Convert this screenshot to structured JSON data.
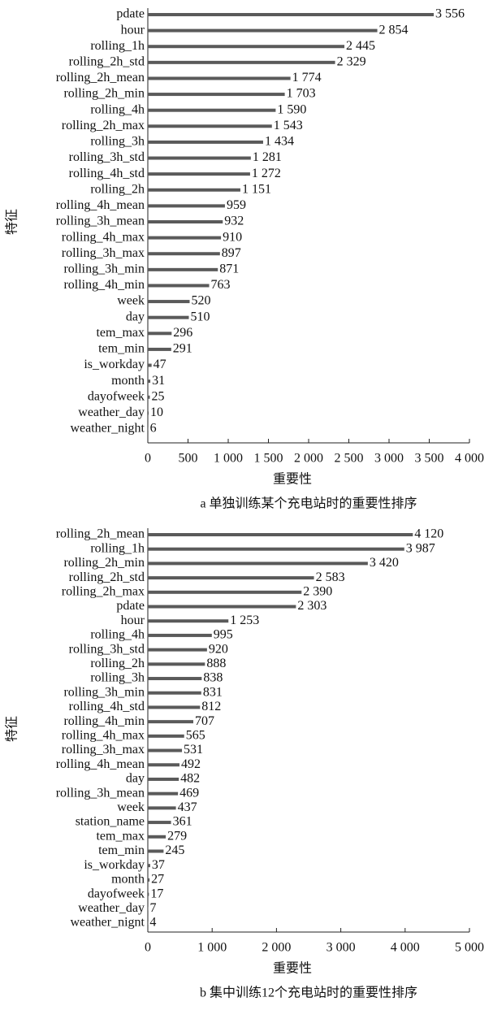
{
  "chart_data": [
    {
      "type": "barh",
      "caption": "a 单独训练某个充电站时的重要性排序",
      "xlabel": "重要性",
      "ylabel": "特征",
      "categories": [
        "pdate",
        "hour",
        "rolling_1h",
        "rolling_2h_std",
        "rolling_2h_mean",
        "rolling_2h_min",
        "rolling_4h",
        "rolling_2h_max",
        "rolling_3h",
        "rolling_3h_std",
        "rolling_4h_std",
        "rolling_2h",
        "rolling_4h_mean",
        "rolling_3h_mean",
        "rolling_4h_max",
        "rolling_3h_max",
        "rolling_3h_min",
        "rolling_4h_min",
        "week",
        "day",
        "tem_max",
        "tem_min",
        "is_workday",
        "month",
        "dayofweek",
        "weather_day",
        "weather_night"
      ],
      "values": [
        3556,
        2854,
        2445,
        2329,
        1774,
        1703,
        1590,
        1543,
        1434,
        1281,
        1272,
        1151,
        959,
        932,
        910,
        897,
        871,
        763,
        520,
        510,
        296,
        291,
        47,
        31,
        25,
        10,
        6
      ],
      "value_labels": [
        "3 556",
        "2 854",
        "2 445",
        "2 329",
        "1 774",
        "1 703",
        "1 590",
        "1 543",
        "1 434",
        "1 281",
        "1 272",
        "1 151",
        "959",
        "932",
        "910",
        "897",
        "871",
        "763",
        "520",
        "510",
        "296",
        "291",
        "47",
        "31",
        "25",
        "10",
        "6"
      ],
      "color": "#5a5a5a",
      "xlim": [
        0,
        4000
      ],
      "xticks": [
        0,
        500,
        {
          "value": 1000,
          "label": "1 000"
        },
        {
          "value": 1500,
          "label": "1 500"
        },
        {
          "value": 2000,
          "label": "2 000"
        },
        {
          "value": 2500,
          "label": "2 500"
        },
        {
          "value": 3000,
          "label": "3 000"
        },
        {
          "value": 3500,
          "label": "3 500"
        },
        {
          "value": 4000,
          "label": "4 000"
        }
      ]
    },
    {
      "type": "barh",
      "caption": "b 集中训练12个充电站时的重要性排序",
      "xlabel": "重要性",
      "ylabel": "特征",
      "categories": [
        "rolling_2h_mean",
        "rolling_1h",
        "rolling_2h_min",
        "rolling_2h_std",
        "rolling_2h_max",
        "pdate",
        "hour",
        "rolling_4h",
        "rolling_3h_std",
        "rolling_2h",
        "rolling_3h",
        "rolling_3h_min",
        "rolling_4h_std",
        "rolling_4h_min",
        "rolling_4h_max",
        "rolling_3h_max",
        "rolling_4h_mean",
        "day",
        "rolling_3h_mean",
        "week",
        "station_name",
        "tem_max",
        "tem_min",
        "is_workday",
        "month",
        "dayofweek",
        "weather_day",
        "weather_nignt"
      ],
      "values": [
        4120,
        3987,
        3420,
        2583,
        2390,
        2303,
        1253,
        995,
        920,
        888,
        838,
        831,
        812,
        707,
        565,
        531,
        492,
        482,
        469,
        437,
        361,
        279,
        245,
        37,
        27,
        17,
        7,
        4
      ],
      "value_labels": [
        "4 120",
        "3 987",
        "3 420",
        "2 583",
        "2 390",
        "2 303",
        "1 253",
        "995",
        "920",
        "888",
        "838",
        "831",
        "812",
        "707",
        "565",
        "531",
        "492",
        "482",
        "469",
        "437",
        "361",
        "279",
        "245",
        "37",
        "27",
        "17",
        "7",
        "4"
      ],
      "color": "#5a5a5a",
      "xlim": [
        0,
        5000
      ],
      "xticks": [
        0,
        {
          "value": 1000,
          "label": "1 000"
        },
        {
          "value": 2000,
          "label": "2 000"
        },
        {
          "value": 3000,
          "label": "3 000"
        },
        {
          "value": 4000,
          "label": "4 000"
        },
        {
          "value": 5000,
          "label": "5 000"
        }
      ]
    }
  ]
}
